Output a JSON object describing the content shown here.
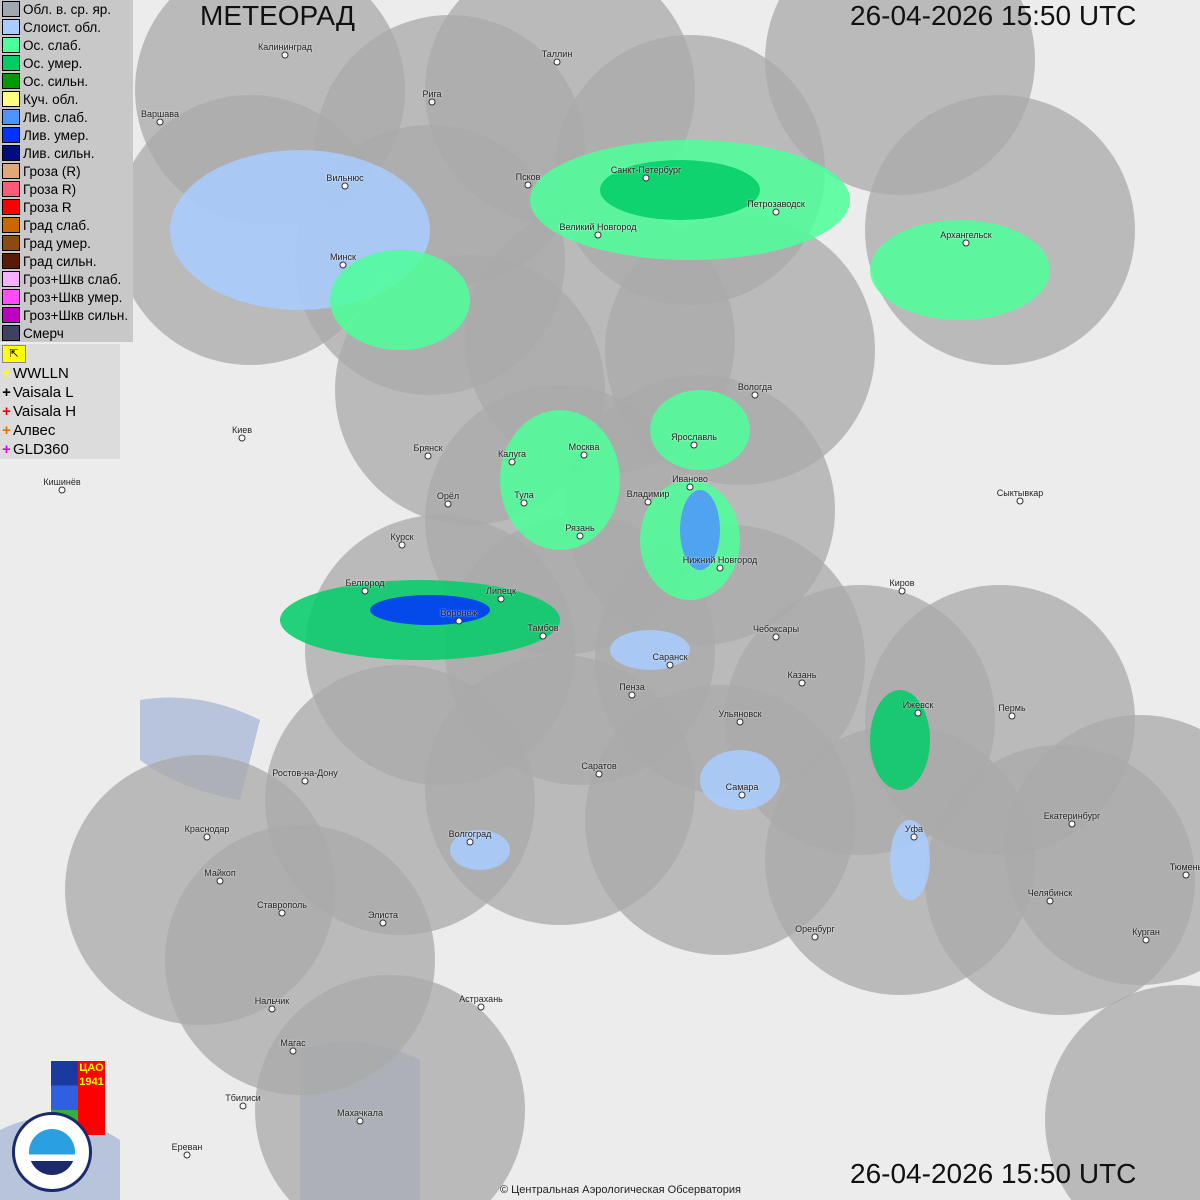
{
  "header": {
    "title": "МЕТЕОРАД",
    "datetime_top": "26-04-2026  15:50 UTC",
    "datetime_bottom": "26-04-2026  15:50 UTC"
  },
  "legend": [
    {
      "label": "Обл. в. ср. яр.",
      "color": "#a0a8b0"
    },
    {
      "label": "Слоист. обл.",
      "color": "#a8ccff"
    },
    {
      "label": "Ос. слаб.",
      "color": "#4dff9a"
    },
    {
      "label": "Ос. умер.",
      "color": "#00cc66"
    },
    {
      "label": "Ос. сильн.",
      "color": "#009900"
    },
    {
      "label": "Куч. обл.",
      "color": "#ffff80"
    },
    {
      "label": "Лив. слаб.",
      "color": "#4d94ff"
    },
    {
      "label": "Лив. умер.",
      "color": "#0033ff"
    },
    {
      "label": "Лив. сильн.",
      "color": "#000c80"
    },
    {
      "label": "Гроза (R)",
      "color": "#e0a878"
    },
    {
      "label": "Гроза R)",
      "color": "#ff5a7a"
    },
    {
      "label": "Гроза R",
      "color": "#ff0000"
    },
    {
      "label": "Град слаб.",
      "color": "#cc6600"
    },
    {
      "label": "Град умер.",
      "color": "#8a4a10"
    },
    {
      "label": "Град сильн.",
      "color": "#5a1a08"
    },
    {
      "label": "Гроз+Шкв слаб.",
      "color": "#f5b0ff"
    },
    {
      "label": "Гроз+Шкв умер.",
      "color": "#ff4dff"
    },
    {
      "label": "Гроз+Шкв сильн.",
      "color": "#c000c0"
    },
    {
      "label": "Смерч",
      "color": "#404060"
    }
  ],
  "lightning": [
    {
      "label": "WWLLN",
      "color": "#ffff00"
    },
    {
      "label": "Vaisala L",
      "color": "#000000"
    },
    {
      "label": "Vaisala H",
      "color": "#ff0000"
    },
    {
      "label": "Алвес",
      "color": "#e07000"
    },
    {
      "label": "GLD360",
      "color": "#e000e0"
    }
  ],
  "logos": {
    "cao": "ЦАО 1941",
    "roshydromet": "РОСГИДРОМЕТ ROSHYDROMET"
  },
  "copyright": "© Центральная Аэрологическая Обсерватория",
  "cities": [
    "Калининград",
    "Таллин",
    "Рига",
    "Варшава",
    "Вильнюс",
    "Псков",
    "Санкт-Петербург",
    "Петрозаводск",
    "Великий Новгород",
    "Архангельск",
    "Минск",
    "Вологда",
    "Ярославль",
    "Киев",
    "Брянск",
    "Калуга",
    "Москва",
    "Иваново",
    "Кишинёв",
    "Орёл",
    "Тула",
    "Владимир",
    "Сыктывкар",
    "Рязань",
    "Курск",
    "Нижний Новгород",
    "Белгород",
    "Киров",
    "Липецк",
    "Воронеж",
    "Тамбов",
    "Чебоксары",
    "Саранск",
    "Казань",
    "Пенза",
    "Ижевск",
    "Пермь",
    "Ульяновск",
    "Ростов-на-Дону",
    "Саратов",
    "Самара",
    "Екатеринбург",
    "Краснодар",
    "Уфа",
    "Волгоград",
    "Тюмень",
    "Майкоп",
    "Челябинск",
    "Ставрополь",
    "Элиста",
    "Оренбург",
    "Курган",
    "Астрахань",
    "Нальчик",
    "Магас",
    "Махачкала",
    "Тбилиси",
    "Ереван"
  ]
}
